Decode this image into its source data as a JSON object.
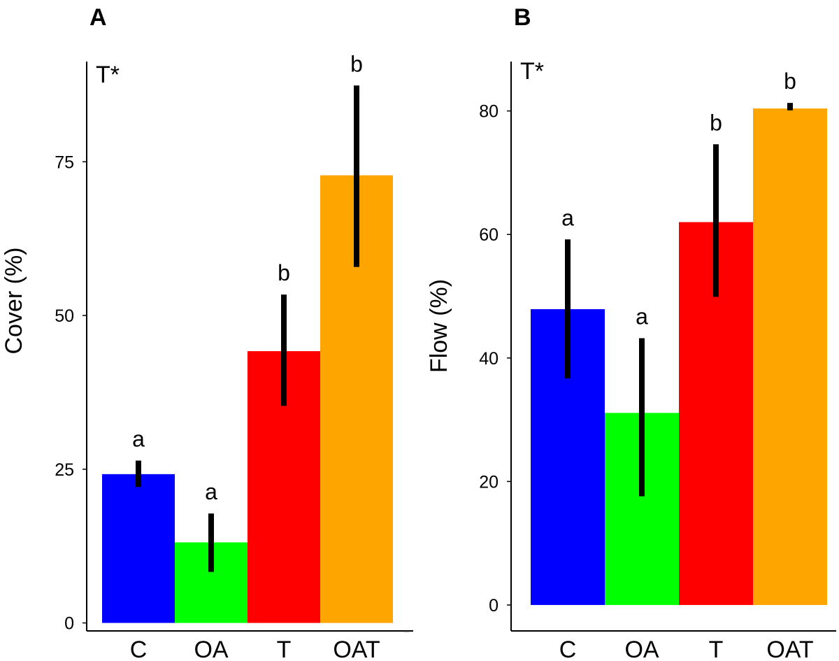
{
  "chart_data": [
    {
      "type": "bar",
      "panel": "A",
      "note": "T*",
      "categories": [
        "C",
        "OA",
        "T",
        "OAT"
      ],
      "values": [
        24.2,
        13.1,
        44.2,
        72.8
      ],
      "error_low": [
        22.1,
        8.3,
        35.3,
        57.9
      ],
      "error_high": [
        26.4,
        17.8,
        53.4,
        87.4
      ],
      "letters": [
        "a",
        "a",
        "b",
        "b"
      ],
      "colors": [
        "#0000ff",
        "#00ff00",
        "#ff0000",
        "#ffa500"
      ],
      "ylabel": "Cover (%)",
      "xlabel": "",
      "yticks": [
        0,
        25,
        50,
        75
      ],
      "ylim": [
        -1.3,
        91.3
      ],
      "grid": false,
      "legend": "none"
    },
    {
      "type": "bar",
      "panel": "B",
      "note": "T*",
      "categories": [
        "C",
        "OA",
        "T",
        "OAT"
      ],
      "values": [
        47.9,
        31.1,
        62.0,
        80.4
      ],
      "error_low": [
        36.7,
        17.6,
        49.9,
        80.1
      ],
      "error_high": [
        59.2,
        43.2,
        74.6,
        81.3
      ],
      "letters": [
        "a",
        "a",
        "b",
        "b"
      ],
      "colors": [
        "#0000ff",
        "#00ff00",
        "#ff0000",
        "#ffa500"
      ],
      "ylabel": "Flow (%)",
      "xlabel": "",
      "yticks": [
        0,
        20,
        40,
        60,
        80
      ],
      "ylim": [
        -4.2,
        88.0
      ],
      "grid": false,
      "legend": "none"
    }
  ]
}
